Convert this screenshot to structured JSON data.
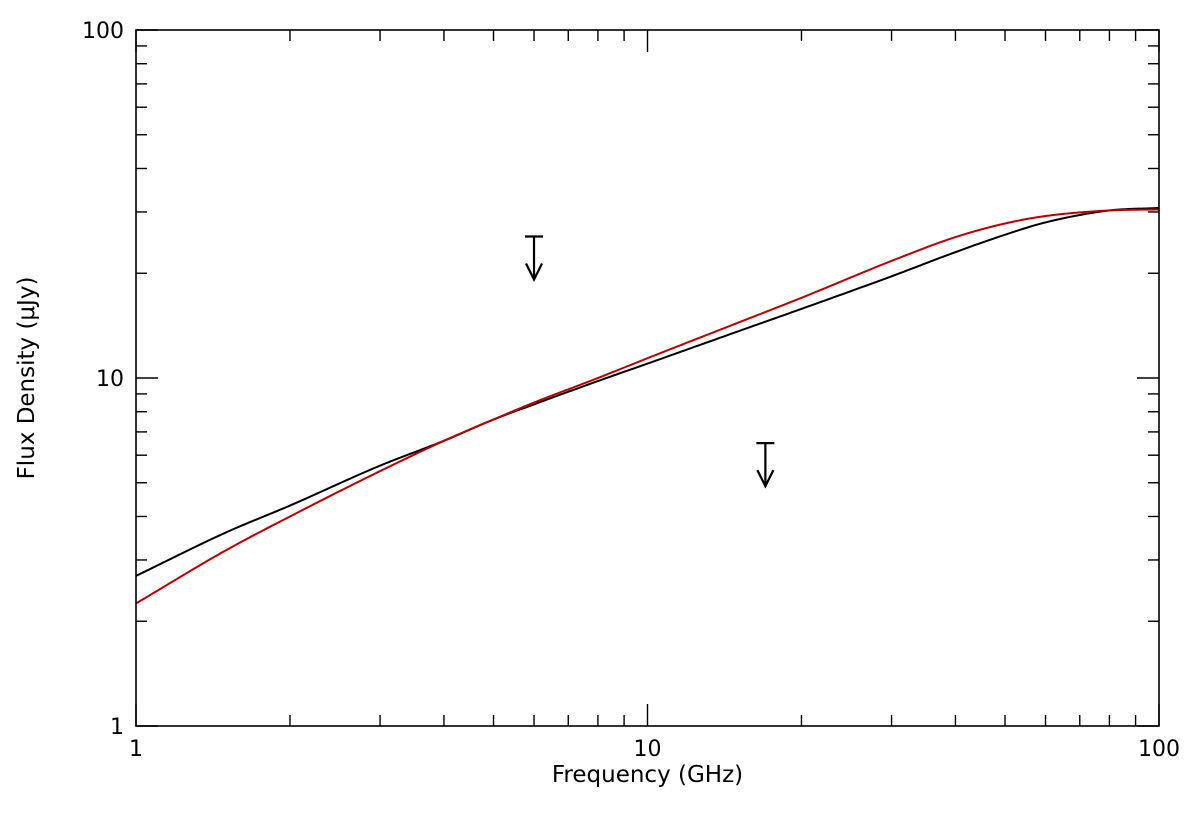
{
  "chart_data": {
    "type": "line",
    "xlabel": "Frequency (GHz)",
    "ylabel": "Flux Density (μJy)",
    "xscale": "log",
    "yscale": "log",
    "xlim": [
      1,
      100
    ],
    "ylim": [
      1,
      100
    ],
    "x_ticks": [
      1,
      10,
      100
    ],
    "x_tick_labels": [
      "1",
      "10",
      "100"
    ],
    "y_ticks": [
      1,
      10,
      100
    ],
    "y_tick_labels": [
      "1",
      "10",
      "100"
    ],
    "series": [
      {
        "color": "#000000",
        "x": [
          1,
          1.5,
          2,
          3,
          4,
          5,
          6,
          8,
          10,
          15,
          20,
          30,
          40,
          50,
          60,
          80,
          100
        ],
        "y": [
          2.7,
          3.6,
          4.3,
          5.6,
          6.6,
          7.6,
          8.4,
          9.8,
          11.0,
          13.6,
          15.8,
          19.6,
          23.0,
          25.8,
          28.0,
          30.3,
          30.8
        ]
      },
      {
        "color": "#c00000",
        "x": [
          1,
          1.5,
          2,
          3,
          4,
          5,
          6,
          8,
          10,
          15,
          20,
          30,
          40,
          50,
          60,
          80,
          100
        ],
        "y": [
          2.25,
          3.2,
          4.0,
          5.4,
          6.6,
          7.6,
          8.5,
          10.0,
          11.4,
          14.4,
          17.0,
          21.7,
          25.4,
          27.8,
          29.2,
          30.3,
          30.5
        ]
      }
    ],
    "upper_limits": [
      {
        "x": 6.0,
        "y": 25.5
      },
      {
        "x": 17.0,
        "y": 6.5
      }
    ]
  }
}
